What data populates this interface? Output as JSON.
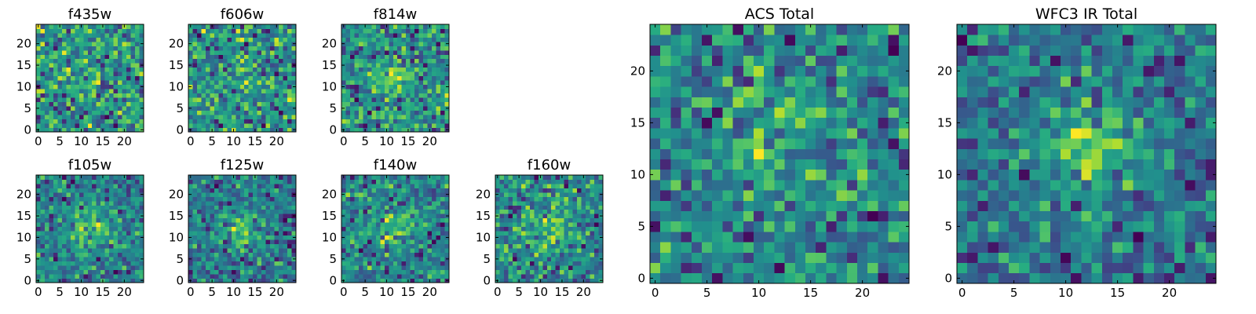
{
  "chart_data": [
    {
      "type": "heatmap",
      "title": "f435w",
      "size": 25,
      "xticks": [
        0,
        5,
        10,
        15,
        20
      ],
      "yticks": [
        0,
        5,
        10,
        15,
        20
      ],
      "xlim": [
        -0.5,
        24.5
      ],
      "ylim": [
        -0.5,
        24.5
      ],
      "colormap": "viridis",
      "seed": 11,
      "blob": 0.05,
      "blob_center": [
        12,
        12
      ],
      "blob_sigma": 4.0
    },
    {
      "type": "heatmap",
      "title": "f606w",
      "size": 25,
      "xticks": [
        0,
        5,
        10,
        15,
        20
      ],
      "yticks": [
        0,
        5,
        10,
        15,
        20
      ],
      "xlim": [
        -0.5,
        24.5
      ],
      "ylim": [
        -0.5,
        24.5
      ],
      "colormap": "viridis",
      "seed": 23,
      "blob": 0.08,
      "blob_center": [
        12,
        12
      ],
      "blob_sigma": 3.5
    },
    {
      "type": "heatmap",
      "title": "f814w",
      "size": 25,
      "xticks": [
        0,
        5,
        10,
        15,
        20
      ],
      "yticks": [
        0,
        5,
        10,
        15,
        20
      ],
      "xlim": [
        -0.5,
        24.5
      ],
      "ylim": [
        -0.5,
        24.5
      ],
      "colormap": "viridis",
      "seed": 37,
      "blob": 0.22,
      "blob_center": [
        12,
        12
      ],
      "blob_sigma": 3.0
    },
    {
      "type": "heatmap",
      "title": "f105w",
      "size": 25,
      "xticks": [
        0,
        5,
        10,
        15,
        20
      ],
      "yticks": [
        0,
        5,
        10,
        15,
        20
      ],
      "xlim": [
        -0.5,
        24.5
      ],
      "ylim": [
        -0.5,
        24.5
      ],
      "colormap": "viridis",
      "seed": 41,
      "blob": 0.35,
      "blob_center": [
        12,
        12
      ],
      "blob_sigma": 3.5
    },
    {
      "type": "heatmap",
      "title": "f125w",
      "size": 25,
      "xticks": [
        0,
        5,
        10,
        15,
        20
      ],
      "yticks": [
        0,
        5,
        10,
        15,
        20
      ],
      "xlim": [
        -0.5,
        24.5
      ],
      "ylim": [
        -0.5,
        24.5
      ],
      "colormap": "viridis",
      "seed": 53,
      "blob": 0.28,
      "blob_center": [
        12,
        12
      ],
      "blob_sigma": 3.5
    },
    {
      "type": "heatmap",
      "title": "f140w",
      "size": 25,
      "xticks": [
        0,
        5,
        10,
        15,
        20
      ],
      "yticks": [
        0,
        5,
        10,
        15,
        20
      ],
      "xlim": [
        -0.5,
        24.5
      ],
      "ylim": [
        -0.5,
        24.5
      ],
      "colormap": "viridis",
      "seed": 67,
      "blob": 0.3,
      "blob_center": [
        12,
        12
      ],
      "blob_sigma": 3.5
    },
    {
      "type": "heatmap",
      "title": "f160w",
      "size": 25,
      "xticks": [
        0,
        5,
        10,
        15,
        20
      ],
      "yticks": [
        0,
        5,
        10,
        15,
        20
      ],
      "xlim": [
        -0.5,
        24.5
      ],
      "ylim": [
        -0.5,
        24.5
      ],
      "colormap": "viridis",
      "seed": 79,
      "blob": 0.25,
      "blob_center": [
        12,
        12
      ],
      "blob_sigma": 3.5
    },
    {
      "type": "heatmap",
      "title": "ACS Total",
      "size": 25,
      "xticks": [
        0,
        5,
        10,
        15,
        20
      ],
      "yticks": [
        0,
        5,
        10,
        15,
        20
      ],
      "xlim": [
        -0.5,
        24.5
      ],
      "ylim": [
        -0.5,
        24.5
      ],
      "colormap": "viridis",
      "seed": 97,
      "blob": 0.22,
      "blob_center": [
        12,
        13
      ],
      "blob_sigma": 3.5
    },
    {
      "type": "heatmap",
      "title": "WFC3 IR Total",
      "size": 25,
      "xticks": [
        0,
        5,
        10,
        15,
        20
      ],
      "yticks": [
        0,
        5,
        10,
        15,
        20
      ],
      "xlim": [
        -0.5,
        24.5
      ],
      "ylim": [
        -0.5,
        24.5
      ],
      "colormap": "viridis",
      "seed": 131,
      "blob": 0.45,
      "blob_center": [
        12,
        13
      ],
      "blob_sigma": 3.0
    }
  ]
}
